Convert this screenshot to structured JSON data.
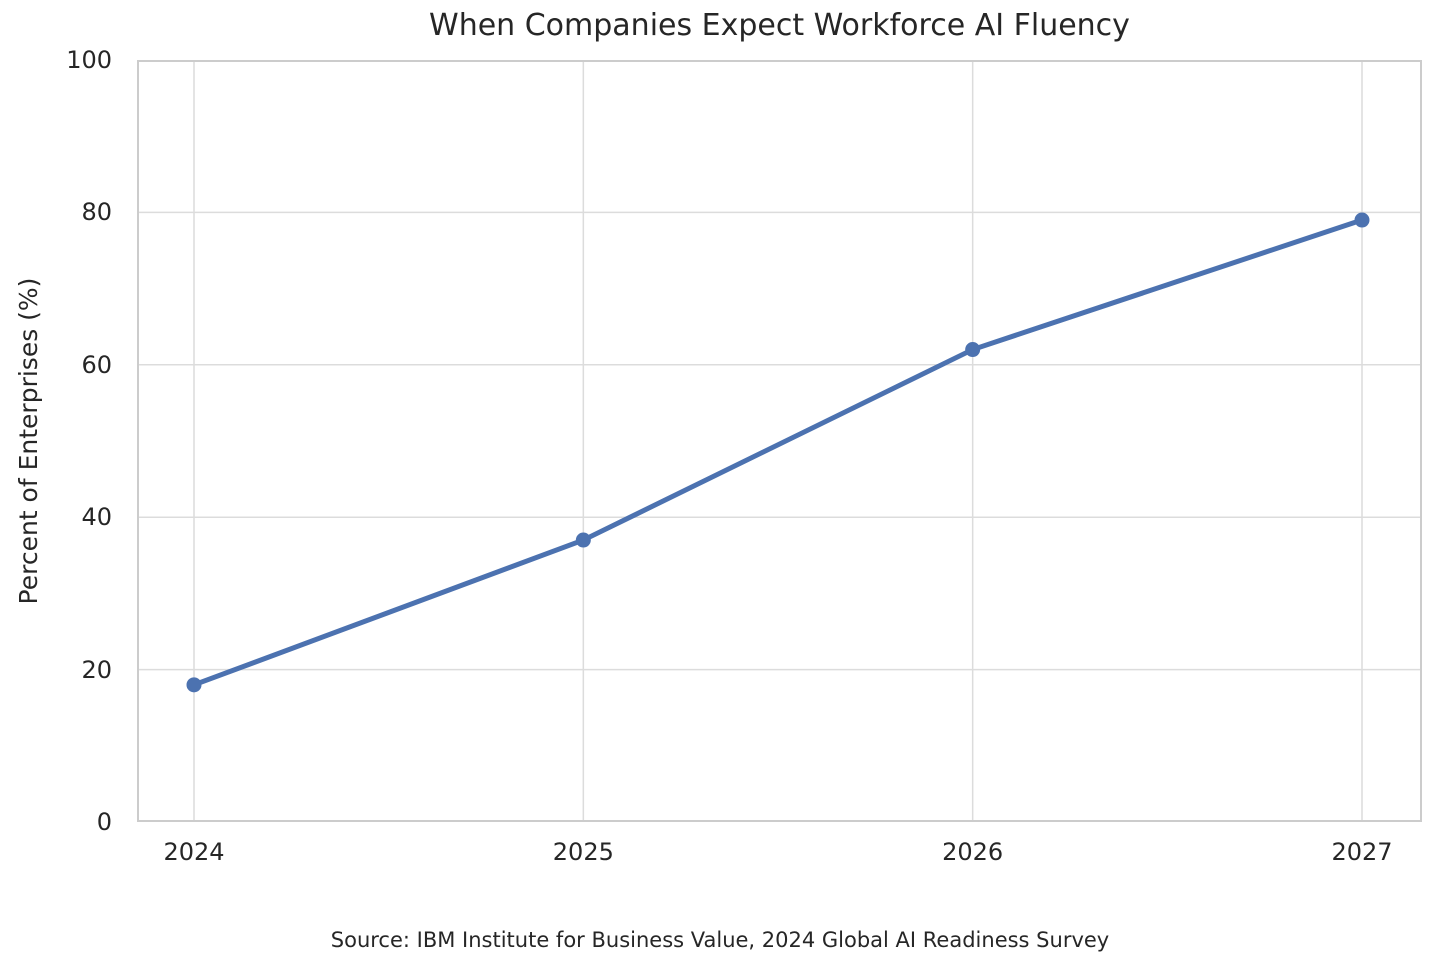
{
  "chart_data": {
    "type": "line",
    "title": "When Companies Expect Workforce AI Fluency",
    "categories": [
      "2024",
      "2025",
      "2026",
      "2027"
    ],
    "values": [
      18,
      37,
      62,
      79
    ],
    "xlabel": "",
    "ylabel": "Percent of Enterprises (%)",
    "ylim": [
      0,
      100
    ],
    "yticks": [
      0,
      20,
      40,
      60,
      80,
      100
    ],
    "grid": "on",
    "legend": "none",
    "source_note": "Source: IBM Institute for Business Value, 2024 Global AI Readiness Survey",
    "colors": {
      "line": "#4C72B0",
      "marker": "#4C72B0",
      "grid": "#dcdcdc",
      "spine": "#cccccc",
      "text": "#262626",
      "background": "#ffffff"
    }
  }
}
